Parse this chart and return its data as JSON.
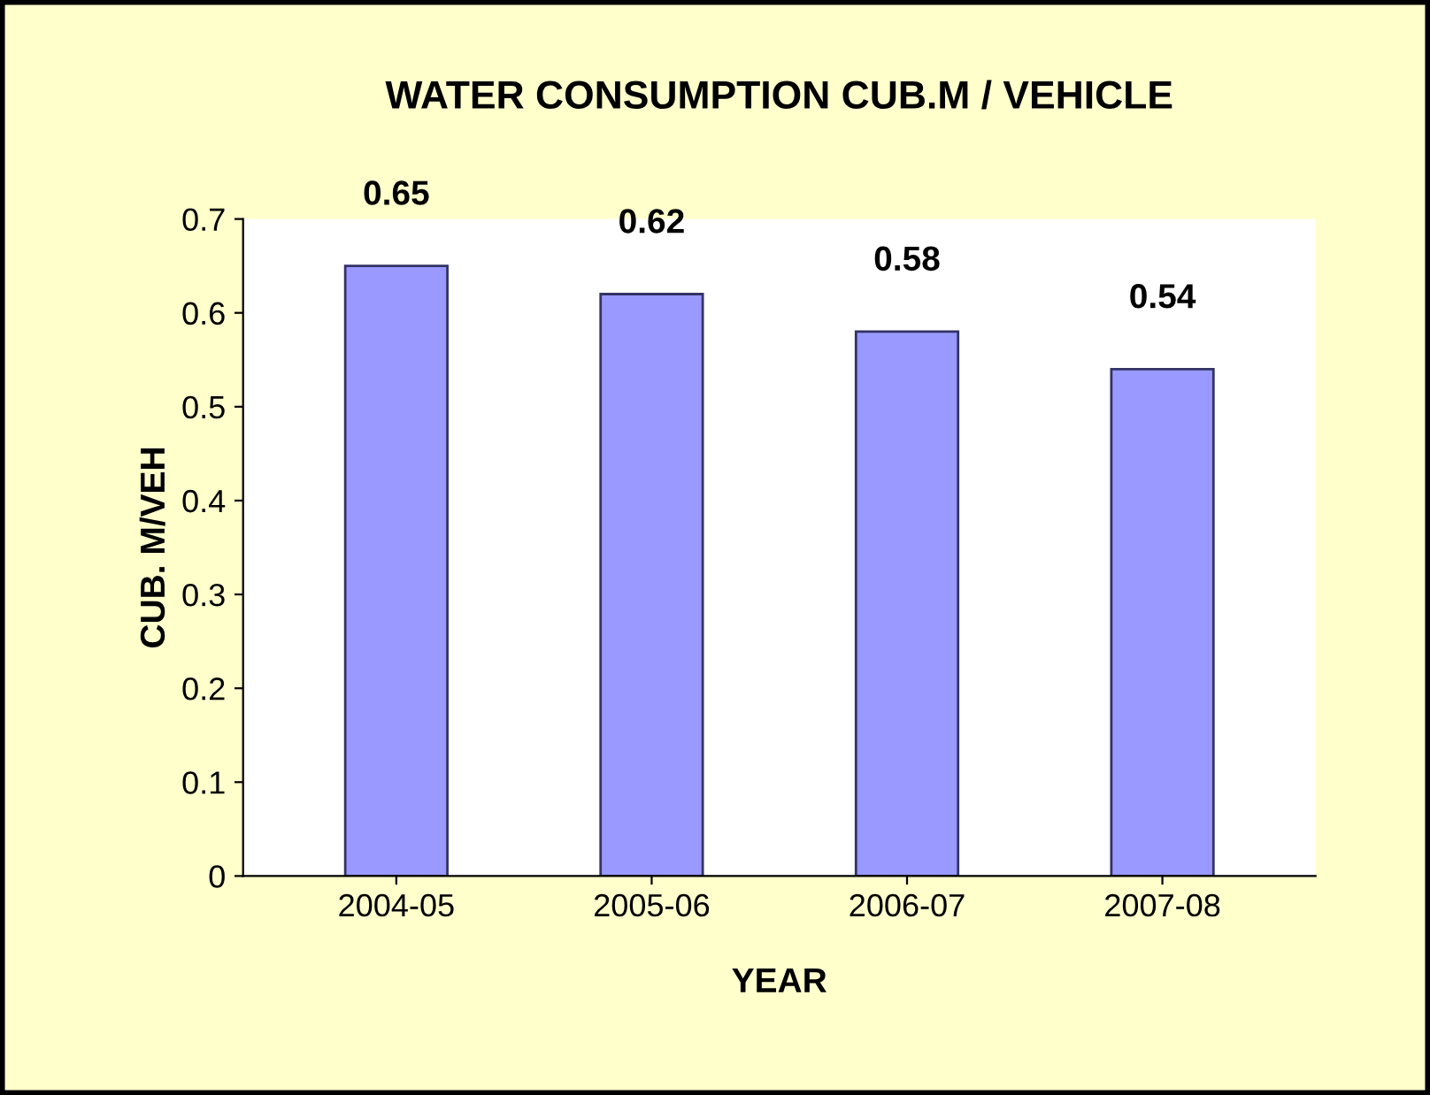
{
  "chart_data": {
    "type": "bar",
    "title": "WATER CONSUMPTION CUB.M / VEHICLE",
    "xlabel": "YEAR",
    "ylabel": "CUB. M/VEH",
    "categories": [
      "2004-05",
      "2005-06",
      "2006-07",
      "2007-08"
    ],
    "values": [
      0.65,
      0.62,
      0.58,
      0.54
    ],
    "color": "#9999ff",
    "ylim": [
      0,
      0.7
    ],
    "yticks": [
      0,
      0.1,
      0.2,
      0.3,
      0.4,
      0.5,
      0.6,
      0.7
    ],
    "data_labels": true,
    "grid": false,
    "legend": false
  }
}
